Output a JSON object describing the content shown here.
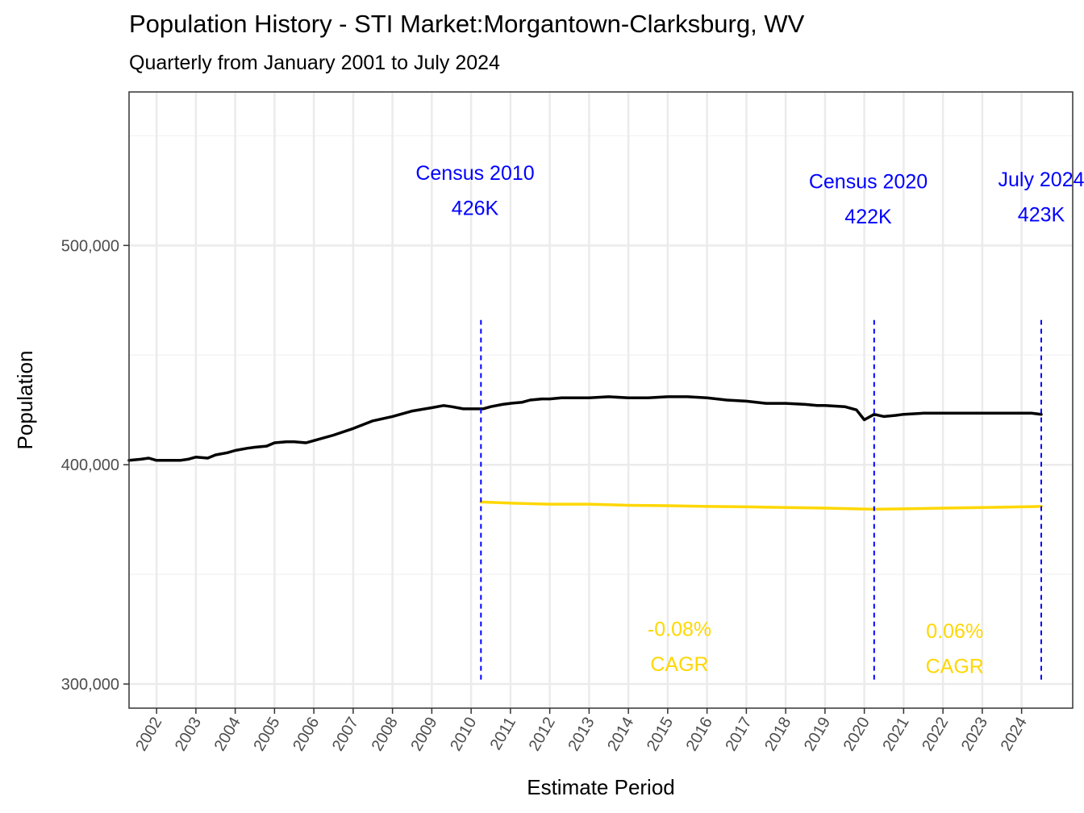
{
  "chart_data": {
    "type": "line",
    "title": "Population History - STI Market:Morgantown-Clarksburg, WV",
    "subtitle": "Quarterly from January 2001 to July 2024",
    "xlabel": "Estimate Period",
    "ylabel": "Population",
    "xlim": [
      2001.3,
      2025.3
    ],
    "ylim": [
      289000,
      570000
    ],
    "x_ticks": [
      2002,
      2003,
      2004,
      2005,
      2006,
      2007,
      2008,
      2009,
      2010,
      2011,
      2012,
      2013,
      2014,
      2015,
      2016,
      2017,
      2018,
      2019,
      2020,
      2021,
      2022,
      2023,
      2024
    ],
    "x_tick_labels": [
      "2002",
      "2003",
      "2004",
      "2005",
      "2006",
      "2007",
      "2008",
      "2009",
      "2010",
      "2011",
      "2012",
      "2013",
      "2014",
      "2015",
      "2016",
      "2017",
      "2018",
      "2019",
      "2020",
      "2021",
      "2022",
      "2023",
      "2024"
    ],
    "y_ticks": [
      300000,
      400000,
      500000
    ],
    "y_tick_labels": [
      "300,000",
      "400,000",
      "500,000"
    ],
    "y_minor_ticks": [
      350000,
      450000,
      550000
    ],
    "grid": true,
    "colors": {
      "population_line": "#000000",
      "cagr_line": "#FFD700",
      "census_markers": "#0000FF",
      "cagr_labels": "#FFD700",
      "annotation_labels": "#0000FF",
      "grid": "#EBEBEB",
      "panel_border": "#333333"
    },
    "series": [
      {
        "key": "population",
        "x": [
          2001.3,
          2001.6,
          2001.8,
          2002.0,
          2002.3,
          2002.6,
          2002.8,
          2003.0,
          2003.3,
          2003.5,
          2003.8,
          2004.0,
          2004.3,
          2004.5,
          2004.8,
          2005.0,
          2005.3,
          2005.5,
          2005.8,
          2006.0,
          2006.5,
          2007.0,
          2007.5,
          2008.0,
          2008.5,
          2009.0,
          2009.3,
          2009.5,
          2009.8,
          2010.0,
          2010.3,
          2010.5,
          2010.8,
          2011.0,
          2011.3,
          2011.5,
          2011.8,
          2012.0,
          2012.3,
          2012.5,
          2012.8,
          2013.0,
          2013.5,
          2014.0,
          2014.5,
          2015.0,
          2015.5,
          2016.0,
          2016.5,
          2017.0,
          2017.5,
          2017.8,
          2018.0,
          2018.5,
          2018.8,
          2019.0,
          2019.5,
          2019.8,
          2020.0,
          2020.25,
          2020.5,
          2020.8,
          2021.0,
          2021.5,
          2022.0,
          2022.5,
          2023.0,
          2023.5,
          2024.0,
          2024.25,
          2024.5
        ],
        "y": [
          402000,
          402500,
          403000,
          402000,
          402000,
          402000,
          402500,
          403500,
          403000,
          404500,
          405500,
          406500,
          407500,
          408000,
          408500,
          410000,
          410500,
          410500,
          410000,
          411000,
          413500,
          416500,
          420000,
          422000,
          424500,
          426000,
          427000,
          426500,
          425500,
          425500,
          425500,
          426500,
          427500,
          428000,
          428500,
          429500,
          430000,
          430000,
          430500,
          430500,
          430500,
          430500,
          431000,
          430500,
          430500,
          431000,
          431000,
          430500,
          429500,
          429000,
          428000,
          428000,
          428000,
          427500,
          427000,
          427000,
          426500,
          425000,
          420500,
          423000,
          422000,
          422500,
          423000,
          423500,
          423500,
          423500,
          423500,
          423500,
          423500,
          423500,
          423000
        ]
      },
      {
        "key": "cagr",
        "x": [
          2010.25,
          2011.0,
          2012.0,
          2013.0,
          2014.0,
          2015.0,
          2016.0,
          2017.0,
          2018.0,
          2019.0,
          2020.0,
          2020.25,
          2021.0,
          2022.0,
          2023.0,
          2024.0,
          2024.5
        ],
        "y": [
          383000,
          382500,
          382000,
          382000,
          381500,
          381300,
          381000,
          380800,
          380500,
          380200,
          379800,
          379700,
          379900,
          380200,
          380500,
          380800,
          381000
        ]
      }
    ],
    "vlines": [
      {
        "x": 2010.25,
        "y_from": 302000,
        "y_to": 466000
      },
      {
        "x": 2020.25,
        "y_from": 302000,
        "y_to": 466000
      },
      {
        "x": 2024.5,
        "y_from": 302000,
        "y_to": 466000
      }
    ],
    "annotations": [
      {
        "id": "census2010",
        "x": 2010.1,
        "y_line1": 530000,
        "y_line2": 514000,
        "line1": "Census 2010",
        "line2": "426K",
        "color": "#0000FF"
      },
      {
        "id": "census2020",
        "x": 2020.1,
        "y_line1": 526000,
        "y_line2": 510000,
        "line1": "Census 2020",
        "line2": "422K",
        "color": "#0000FF"
      },
      {
        "id": "july2024",
        "x": 2024.5,
        "y_line1": 527000,
        "y_line2": 511000,
        "line1": "July 2024",
        "line2": "423K",
        "color": "#0000FF"
      },
      {
        "id": "cagr1",
        "x": 2015.3,
        "y_line1": 322000,
        "y_line2": 306000,
        "line1": "-0.08%",
        "line2": "CAGR",
        "color": "#FFD700"
      },
      {
        "id": "cagr2",
        "x": 2022.3,
        "y_line1": 321000,
        "y_line2": 305000,
        "line1": "0.06%",
        "line2": "CAGR",
        "color": "#FFD700"
      }
    ]
  }
}
